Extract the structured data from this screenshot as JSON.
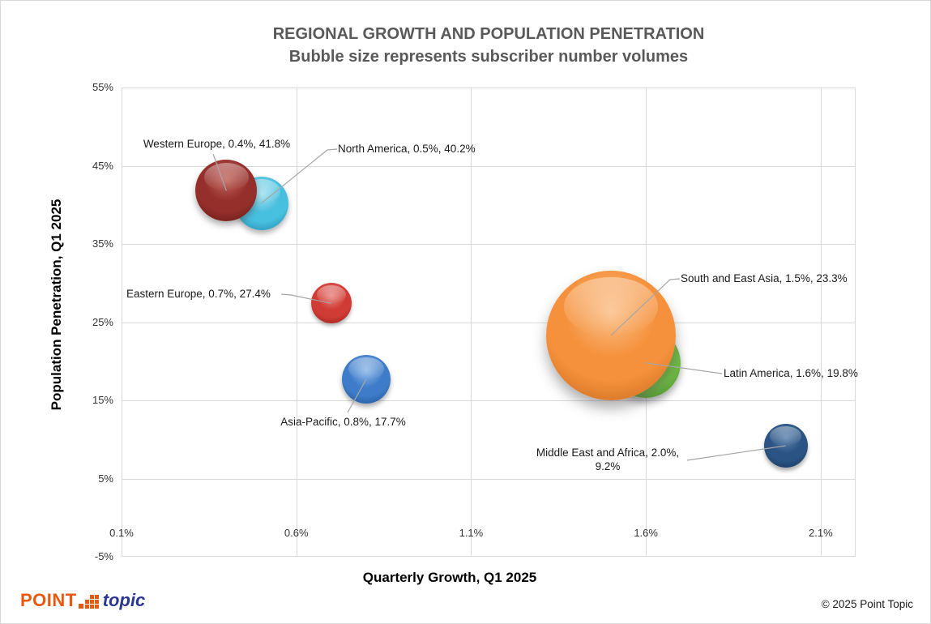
{
  "chart_data": {
    "type": "scatter",
    "variant": "bubble",
    "title": "REGIONAL GROWTH AND POPULATION PENETRATION",
    "subtitle": "Bubble size represents subscriber number volumes",
    "xlabel": "Quarterly Growth, Q1 2025",
    "ylabel": "Population Penetration, Q1 2025",
    "x_unit": "%",
    "y_unit": "%",
    "xlim": [
      0.1,
      2.2
    ],
    "ylim": [
      -5,
      55
    ],
    "grid": true,
    "legend_position": "none",
    "x_ticks": {
      "values": [
        0.1,
        0.6,
        1.1,
        1.6,
        2.1
      ],
      "labels": [
        "0.1%",
        "0.6%",
        "1.1%",
        "1.6%",
        "2.1%"
      ]
    },
    "y_ticks": {
      "values": [
        55,
        45,
        35,
        25,
        15,
        5,
        -5
      ],
      "labels": [
        "55%",
        "45%",
        "35%",
        "25%",
        "15%",
        "5%",
        "-5%"
      ]
    },
    "points": [
      {
        "id": "western-europe",
        "region": "Western Europe",
        "x": 0.4,
        "y": 41.8,
        "label": "Western Europe, 0.4%, 41.8%",
        "radius_px": 38,
        "color": {
          "base": "#952F2B",
          "light": "#C1655C",
          "dark": "#5F1612"
        }
      },
      {
        "id": "north-america",
        "region": "North America",
        "x": 0.5,
        "y": 40.2,
        "label": "North America, 0.5%, 40.2%",
        "radius_px": 33,
        "color": {
          "base": "#47BFDE",
          "light": "#A5E2F0",
          "dark": "#1D84A8"
        }
      },
      {
        "id": "eastern-europe",
        "region": "Eastern Europe",
        "x": 0.7,
        "y": 27.4,
        "label": "Eastern Europe, 0.7%, 27.4%",
        "radius_px": 25,
        "color": {
          "base": "#D03C35",
          "light": "#EA8680",
          "dark": "#8F1B15"
        }
      },
      {
        "id": "asia-pacific",
        "region": "Asia-Pacific",
        "x": 0.8,
        "y": 17.7,
        "label": "Asia-Pacific, 0.8%, 17.7%",
        "radius_px": 30,
        "color": {
          "base": "#3E7CC9",
          "light": "#8FB8E8",
          "dark": "#1D4C8C"
        }
      },
      {
        "id": "south-east-asia",
        "region": "South and East Asia",
        "x": 1.5,
        "y": 23.3,
        "label": "South and East Asia, 1.5%, 23.3%",
        "radius_px": 80,
        "color": {
          "base": "#F5913C",
          "light": "#FAC089",
          "dark": "#C2661C"
        }
      },
      {
        "id": "latin-america",
        "region": "Latin America",
        "x": 1.6,
        "y": 19.8,
        "label": "Latin America, 1.6%, 19.8%",
        "radius_px": 43,
        "color": {
          "base": "#6FBE44",
          "light": "#ABD88B",
          "dark": "#438622"
        }
      },
      {
        "id": "middle-east-africa",
        "region": "Middle East and Africa",
        "x": 2.0,
        "y": 9.2,
        "label": "Middle East and Africa, 2.0%, 9.2%",
        "radius_px": 27,
        "color": {
          "base": "#2B5484",
          "light": "#5F84AD",
          "dark": "#152F4F"
        }
      }
    ],
    "leader_line_color": "#a6a6a6",
    "gridline_color": "#d9d9d9",
    "title_color": "#595959"
  },
  "footer": {
    "copyright": "© 2025 Point Topic"
  },
  "logo": {
    "point": "POINT",
    "topic": "topic",
    "orange": "#e8590f",
    "blue": "#2a3790"
  }
}
